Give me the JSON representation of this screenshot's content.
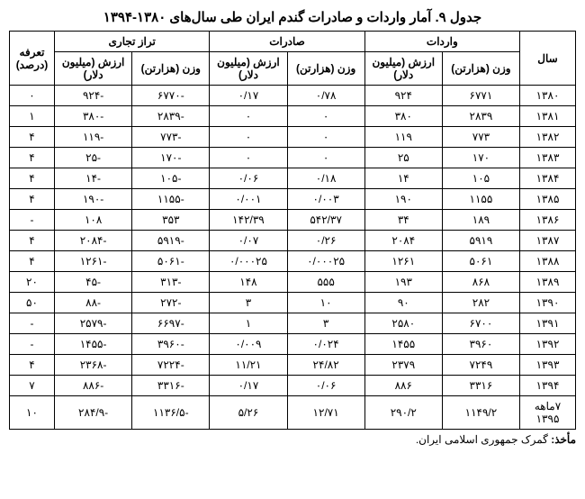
{
  "title": "جدول ۹. آمار واردات و صادرات گندم ایران طی سال‌های ۱۳۸۰-۱۳۹۴",
  "headers": {
    "year": "سال",
    "imports": "واردات",
    "exports": "صادرات",
    "trade_balance": "تراز تجاری",
    "tariff": "تعرفه (درصد)",
    "weight": "وزن (هزارتن)",
    "value": "ارزش (میلیون دلار)"
  },
  "rows": [
    {
      "year": "۱۳۸۰",
      "imp_w": "۶۷۷۱",
      "imp_v": "۹۲۴",
      "exp_w": "۰/۷۸",
      "exp_v": "۰/۱۷",
      "bal_w": "-۶۷۷۰",
      "bal_v": "-۹۲۴",
      "tariff": "۰"
    },
    {
      "year": "۱۳۸۱",
      "imp_w": "۲۸۳۹",
      "imp_v": "۳۸۰",
      "exp_w": "۰",
      "exp_v": "۰",
      "bal_w": "-۲۸۳۹",
      "bal_v": "-۳۸۰",
      "tariff": "۱"
    },
    {
      "year": "۱۳۸۲",
      "imp_w": "۷۷۳",
      "imp_v": "۱۱۹",
      "exp_w": "۰",
      "exp_v": "۰",
      "bal_w": "-۷۷۳",
      "bal_v": "-۱۱۹",
      "tariff": "۴"
    },
    {
      "year": "۱۳۸۳",
      "imp_w": "۱۷۰",
      "imp_v": "۲۵",
      "exp_w": "۰",
      "exp_v": "۰",
      "bal_w": "-۱۷۰",
      "bal_v": "-۲۵",
      "tariff": "۴"
    },
    {
      "year": "۱۳۸۴",
      "imp_w": "۱۰۵",
      "imp_v": "۱۴",
      "exp_w": "۰/۱۸",
      "exp_v": "۰/۰۶",
      "bal_w": "-۱۰۵",
      "bal_v": "-۱۴",
      "tariff": "۴"
    },
    {
      "year": "۱۳۸۵",
      "imp_w": "۱۱۵۵",
      "imp_v": "۱۹۰",
      "exp_w": "۰/۰۰۳",
      "exp_v": "۰/۰۰۱",
      "bal_w": "-۱۱۵۵",
      "bal_v": "-۱۹۰",
      "tariff": "۴"
    },
    {
      "year": "۱۳۸۶",
      "imp_w": "۱۸۹",
      "imp_v": "۳۴",
      "exp_w": "۵۴۲/۳۷",
      "exp_v": "۱۴۲/۳۹",
      "bal_w": "۳۵۳",
      "bal_v": "۱۰۸",
      "tariff": "-"
    },
    {
      "year": "۱۳۸۷",
      "imp_w": "۵۹۱۹",
      "imp_v": "۲۰۸۴",
      "exp_w": "۰/۲۶",
      "exp_v": "۰/۰۷",
      "bal_w": "-۵۹۱۹",
      "bal_v": "-۲۰۸۴",
      "tariff": "۴"
    },
    {
      "year": "۱۳۸۸",
      "imp_w": "۵۰۶۱",
      "imp_v": "۱۲۶۱",
      "exp_w": "۰/۰۰۰۲۵",
      "exp_v": "۰/۰۰۰۲۵",
      "bal_w": "-۵۰۶۱",
      "bal_v": "-۱۲۶۱",
      "tariff": "۴"
    },
    {
      "year": "۱۳۸۹",
      "imp_w": "۸۶۸",
      "imp_v": "۱۹۳",
      "exp_w": "۵۵۵",
      "exp_v": "۱۴۸",
      "bal_w": "-۳۱۳",
      "bal_v": "-۴۵",
      "tariff": "۲۰"
    },
    {
      "year": "۱۳۹۰",
      "imp_w": "۲۸۲",
      "imp_v": "۹۰",
      "exp_w": "۱۰",
      "exp_v": "۳",
      "bal_w": "-۲۷۲",
      "bal_v": "-۸۸",
      "tariff": "۵۰"
    },
    {
      "year": "۱۳۹۱",
      "imp_w": "۶۷۰۰",
      "imp_v": "۲۵۸۰",
      "exp_w": "۳",
      "exp_v": "۱",
      "bal_w": "-۶۶۹۷",
      "bal_v": "-۲۵۷۹",
      "tariff": "-"
    },
    {
      "year": "۱۳۹۲",
      "imp_w": "۳۹۶۰",
      "imp_v": "۱۴۵۵",
      "exp_w": "۰/۰۲۴",
      "exp_v": "۰/۰۰۹",
      "bal_w": "-۳۹۶۰",
      "bal_v": "-۱۴۵۵",
      "tariff": "-"
    },
    {
      "year": "۱۳۹۳",
      "imp_w": "۷۲۴۹",
      "imp_v": "۲۳۷۹",
      "exp_w": "۲۴/۸۲",
      "exp_v": "۱۱/۲۱",
      "bal_w": "-۷۲۲۴",
      "bal_v": "-۲۳۶۸",
      "tariff": "۴"
    },
    {
      "year": "۱۳۹۴",
      "imp_w": "۳۳۱۶",
      "imp_v": "۸۸۶",
      "exp_w": "۰/۰۶",
      "exp_v": "۰/۱۷",
      "bal_w": "-۳۳۱۶",
      "bal_v": "-۸۸۶",
      "tariff": "۷"
    },
    {
      "year": "۷ماهه ۱۳۹۵",
      "imp_w": "۱۱۴۹/۲",
      "imp_v": "۲۹۰/۲",
      "exp_w": "۱۲/۷۱",
      "exp_v": "۵/۲۶",
      "bal_w": "-۱۱۳۶/۵",
      "bal_v": "-۲۸۴/۹",
      "tariff": "۱۰"
    }
  ],
  "footer": {
    "label": "مأخذ:",
    "text": " گمرک جمهوری اسلامی ایران."
  }
}
